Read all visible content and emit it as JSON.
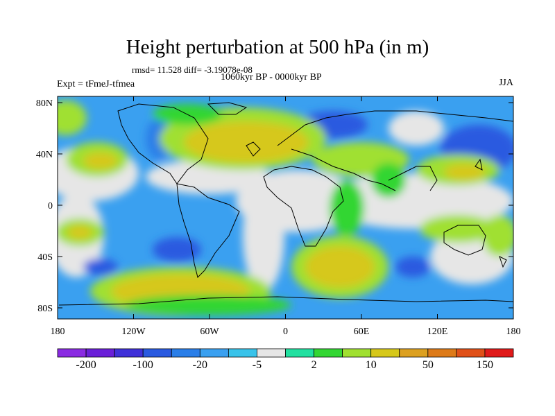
{
  "title": "Height perturbation at 500 hPa (in m)",
  "stats": "rmsd= 11.528 diff= -3.19078e-08",
  "period": "1060kyr BP - 0000kyr BP",
  "experiment": "Expt = tFmeJ-tfmea",
  "season": "JJA",
  "lat_labels": [
    "80N",
    "40N",
    "0",
    "40S",
    "80S"
  ],
  "lon_labels": [
    "180",
    "120W",
    "60W",
    "0",
    "60E",
    "120E",
    "180"
  ],
  "colorbar": {
    "colors": [
      "#8a2be2",
      "#6a1fd8",
      "#3f30d8",
      "#2a5ae0",
      "#2a7ee8",
      "#3aa0f0",
      "#39c3ea",
      "#e6e6e6",
      "#22e0a0",
      "#33d633",
      "#a0e030",
      "#d6c81a",
      "#dca020",
      "#dd7a18",
      "#e05018",
      "#e01a1a"
    ],
    "labels": [
      "-200",
      "-100",
      "-20",
      "-5",
      "2",
      "10",
      "50",
      "150"
    ]
  },
  "field_colors": {
    "strong_neg": "#2a5ae0",
    "neg": "#2a7ee8",
    "weak_neg": "#3aa0f0",
    "light_neg": "#39c3ea",
    "neutral": "#e6e6e6",
    "light_pos": "#22e0a0",
    "pos": "#33d633",
    "mid_pos": "#a0e030",
    "strong_pos": "#d6c81a"
  }
}
